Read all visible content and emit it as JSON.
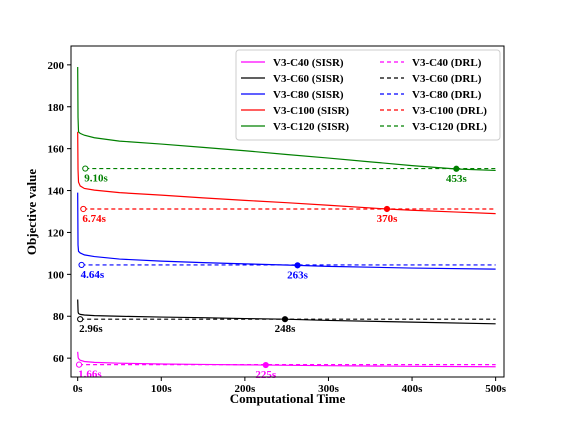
{
  "chart_data": {
    "type": "line",
    "xlabel": "Computational Time",
    "ylabel": "Objective value",
    "xlim": [
      -8,
      510
    ],
    "ylim": [
      51,
      209
    ],
    "x_ticks": [
      0,
      100,
      200,
      300,
      400,
      500
    ],
    "x_tick_labels": [
      "0s",
      "100s",
      "200s",
      "300s",
      "400s",
      "500s"
    ],
    "y_ticks": [
      60,
      80,
      100,
      120,
      140,
      160,
      180,
      200
    ],
    "y_tick_labels": [
      "60",
      "80",
      "100",
      "120",
      "140",
      "160",
      "180",
      "200"
    ],
    "legend_position": "top-right",
    "grid": false,
    "series": [
      {
        "name": "V3-C40 (SISR)",
        "color": "#ff00ff",
        "style": "solid",
        "points": [
          [
            0,
            63
          ],
          [
            0.5,
            60.5
          ],
          [
            1,
            59.8
          ],
          [
            3,
            59.0
          ],
          [
            8,
            58.4
          ],
          [
            20,
            58.0
          ],
          [
            50,
            57.6
          ],
          [
            100,
            57.2
          ],
          [
            150,
            57.0
          ],
          [
            200,
            56.8
          ],
          [
            225,
            56.7
          ],
          [
            300,
            56.4
          ],
          [
            400,
            56.1
          ],
          [
            500,
            55.9
          ]
        ]
      },
      {
        "name": "V3-C60 (SISR)",
        "color": "#000000",
        "style": "solid",
        "points": [
          [
            0,
            88
          ],
          [
            0.5,
            82
          ],
          [
            1,
            81.3
          ],
          [
            3,
            80.9
          ],
          [
            8,
            80.6
          ],
          [
            20,
            80.3
          ],
          [
            50,
            80.0
          ],
          [
            100,
            79.6
          ],
          [
            150,
            79.3
          ],
          [
            200,
            78.9
          ],
          [
            248,
            78.6
          ],
          [
            300,
            78.0
          ],
          [
            400,
            77.2
          ],
          [
            500,
            76.4
          ]
        ]
      },
      {
        "name": "V3-C80 (SISR)",
        "color": "#0000ff",
        "style": "solid",
        "points": [
          [
            0,
            139
          ],
          [
            0.4,
            114
          ],
          [
            1,
            111
          ],
          [
            3,
            110.2
          ],
          [
            8,
            109.3
          ],
          [
            20,
            108.5
          ],
          [
            50,
            107.3
          ],
          [
            100,
            106.3
          ],
          [
            150,
            105.6
          ],
          [
            200,
            105.0
          ],
          [
            263,
            104.3
          ],
          [
            300,
            103.8
          ],
          [
            400,
            103.0
          ],
          [
            500,
            102.5
          ]
        ]
      },
      {
        "name": "V3-C100 (SISR)",
        "color": "#ff0000",
        "style": "solid",
        "points": [
          [
            0,
            168
          ],
          [
            0.4,
            150
          ],
          [
            1,
            144
          ],
          [
            3,
            142.2
          ],
          [
            8,
            141.0
          ],
          [
            20,
            140.2
          ],
          [
            50,
            139.0
          ],
          [
            100,
            137.8
          ],
          [
            150,
            136.5
          ],
          [
            200,
            135.3
          ],
          [
            250,
            134.2
          ],
          [
            300,
            133.0
          ],
          [
            370,
            131.2
          ],
          [
            400,
            130.6
          ],
          [
            450,
            129.8
          ],
          [
            500,
            129.0
          ]
        ]
      },
      {
        "name": "V3-C120 (SISR)",
        "color": "#008000",
        "style": "solid",
        "points": [
          [
            0,
            199
          ],
          [
            0.4,
            175
          ],
          [
            1,
            168
          ],
          [
            3,
            167.3
          ],
          [
            8,
            166.4
          ],
          [
            20,
            165.2
          ],
          [
            50,
            163.6
          ],
          [
            100,
            162.2
          ],
          [
            150,
            160.6
          ],
          [
            200,
            159.0
          ],
          [
            250,
            157.2
          ],
          [
            300,
            155.5
          ],
          [
            350,
            153.7
          ],
          [
            400,
            151.9
          ],
          [
            453,
            150.3
          ],
          [
            500,
            149.6
          ]
        ]
      },
      {
        "name": "V3-C40 (DRL)",
        "color": "#ff00ff",
        "style": "dashed",
        "points": [
          [
            1.66,
            56.9
          ],
          [
            500,
            56.9
          ]
        ]
      },
      {
        "name": "V3-C60 (DRL)",
        "color": "#000000",
        "style": "dashed",
        "points": [
          [
            2.96,
            78.6
          ],
          [
            500,
            78.6
          ]
        ]
      },
      {
        "name": "V3-C80 (DRL)",
        "color": "#0000ff",
        "style": "dashed",
        "points": [
          [
            4.64,
            104.5
          ],
          [
            500,
            104.5
          ]
        ]
      },
      {
        "name": "V3-C100 (DRL)",
        "color": "#ff0000",
        "style": "dashed",
        "points": [
          [
            6.74,
            131.2
          ],
          [
            500,
            131.2
          ]
        ]
      },
      {
        "name": "V3-C120 (DRL)",
        "color": "#008000",
        "style": "dashed",
        "points": [
          [
            9.1,
            150.5
          ],
          [
            500,
            150.5
          ]
        ]
      }
    ],
    "annotations": [
      {
        "text": "1.66s",
        "color": "#ff00ff",
        "x": 1.66,
        "y": 56.9,
        "marker": "open"
      },
      {
        "text": "225s",
        "color": "#ff00ff",
        "x": 225,
        "y": 56.7,
        "marker": "filled"
      },
      {
        "text": "2.96s",
        "color": "#000000",
        "x": 2.96,
        "y": 78.6,
        "marker": "open"
      },
      {
        "text": "248s",
        "color": "#000000",
        "x": 248,
        "y": 78.6,
        "marker": "filled"
      },
      {
        "text": "4.64s",
        "color": "#0000ff",
        "x": 4.64,
        "y": 104.5,
        "marker": "open"
      },
      {
        "text": "263s",
        "color": "#0000ff",
        "x": 263,
        "y": 104.3,
        "marker": "filled"
      },
      {
        "text": "6.74s",
        "color": "#ff0000",
        "x": 6.74,
        "y": 131.2,
        "marker": "open"
      },
      {
        "text": "370s",
        "color": "#ff0000",
        "x": 370,
        "y": 131.2,
        "marker": "filled"
      },
      {
        "text": "9.10s",
        "color": "#008000",
        "x": 9.1,
        "y": 150.5,
        "marker": "open"
      },
      {
        "text": "453s",
        "color": "#008000",
        "x": 453,
        "y": 150.4,
        "marker": "filled"
      }
    ]
  }
}
